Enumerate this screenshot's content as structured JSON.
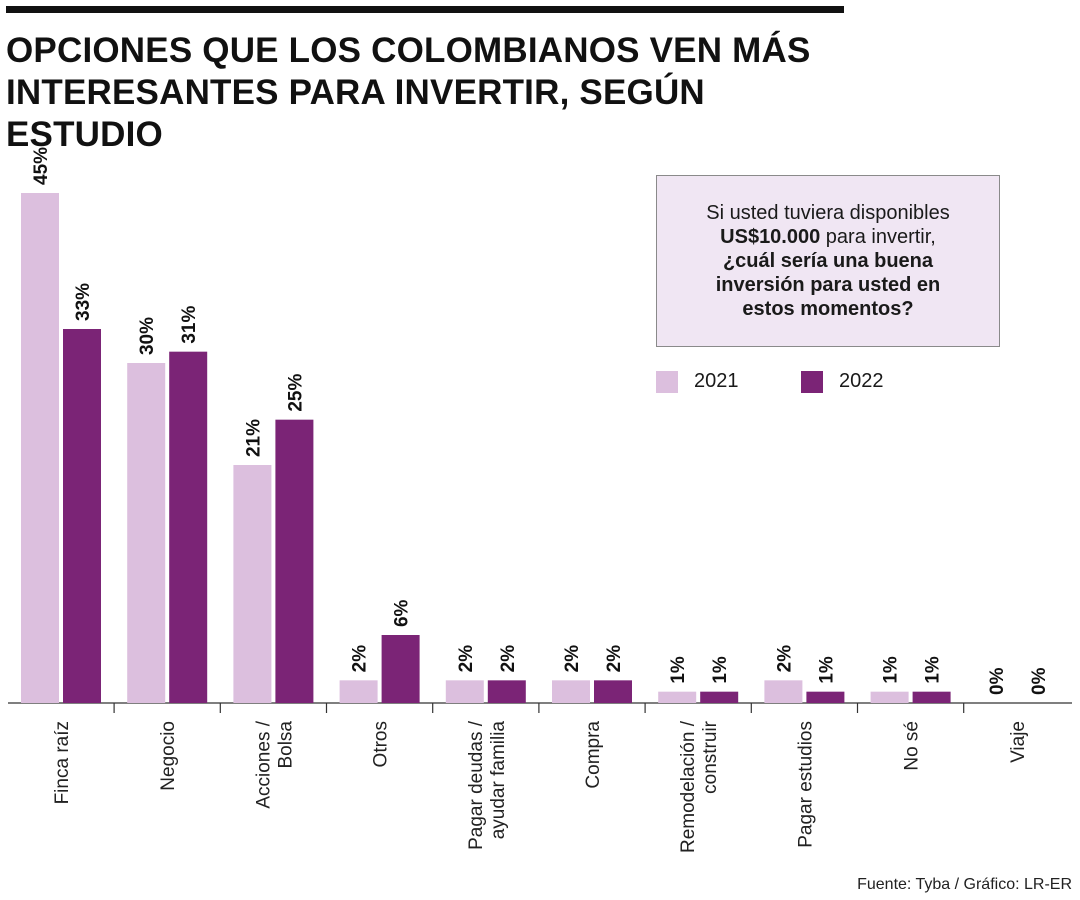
{
  "title": {
    "line1": "OPCIONES QUE LOS COLOMBIANOS VEN MÁS",
    "line2": "INTERESANTES PARA INVERTIR, SEGÚN ESTUDIO"
  },
  "question": {
    "line1": "Si usted tuviera disponibles",
    "line2_bold": "US$10.000",
    "line2_rest": " para invertir,",
    "line3": "¿cuál sería una buena",
    "line4": "inversión para usted en",
    "line5": "estos momentos?"
  },
  "source": "Fuente: Tyba  / Gráfico: LR-ER",
  "colors": {
    "series_2021": "#dcbfde",
    "series_2022": "#7b2476",
    "axis": "#333333"
  },
  "chart_data": {
    "type": "bar",
    "categories": [
      [
        "Finca raíz"
      ],
      [
        "Negocio"
      ],
      [
        "Acciones /",
        "Bolsa"
      ],
      [
        "Otros"
      ],
      [
        "Pagar deudas /",
        "ayudar familia"
      ],
      [
        "Compra"
      ],
      [
        "Remodelación /",
        "construir"
      ],
      [
        "Pagar estudios"
      ],
      [
        "No sé"
      ],
      [
        "Viaje"
      ]
    ],
    "series": [
      {
        "name": "2021",
        "values": [
          45,
          30,
          21,
          2,
          2,
          2,
          1,
          2,
          1,
          0
        ],
        "labels": [
          "45%",
          "30%",
          "21%",
          "2%",
          "2%",
          "2%",
          "1%",
          "2%",
          "1%",
          "0%"
        ]
      },
      {
        "name": "2022",
        "values": [
          33,
          31,
          25,
          6,
          2,
          2,
          1,
          1,
          1,
          0
        ],
        "labels": [
          "33%",
          "31%",
          "25%",
          "6%",
          "2%",
          "2%",
          "1%",
          "1%",
          "1%",
          "0%"
        ]
      }
    ],
    "ylim": [
      0,
      45
    ],
    "grid": false,
    "legend": "right"
  }
}
